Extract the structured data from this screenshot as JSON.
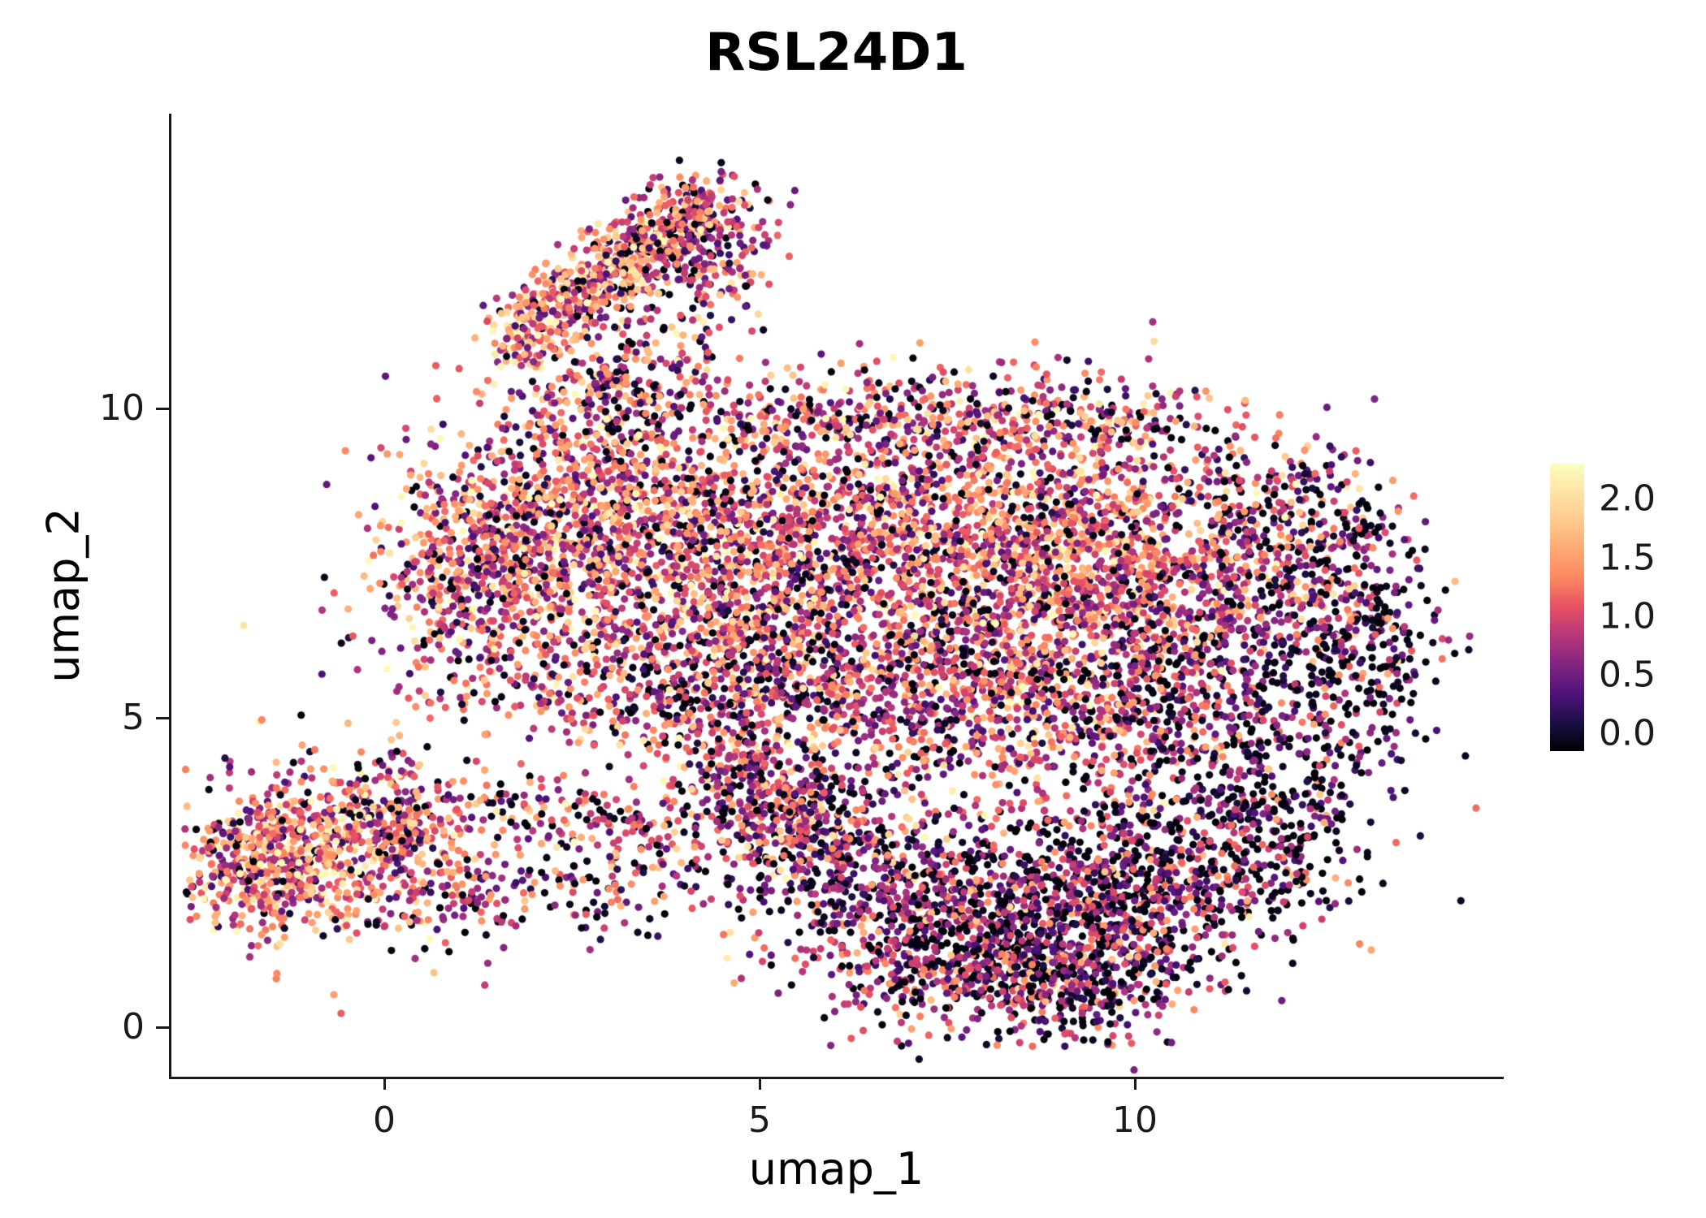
{
  "title": "RSL24D1",
  "axes": {
    "x": {
      "label": "umap_1",
      "ticks": [
        {
          "value": 0,
          "label": "0"
        },
        {
          "value": 5,
          "label": "5"
        },
        {
          "value": 10,
          "label": "10"
        }
      ]
    },
    "y": {
      "label": "umap_2",
      "ticks": [
        {
          "value": 0,
          "label": "0"
        },
        {
          "value": 5,
          "label": "5"
        },
        {
          "value": 10,
          "label": "10"
        }
      ]
    }
  },
  "legend": {
    "ticks": [
      {
        "value": 2.0,
        "label": "2.0"
      },
      {
        "value": 1.5,
        "label": "1.5"
      },
      {
        "value": 1.0,
        "label": "1.0"
      },
      {
        "value": 0.5,
        "label": "0.5"
      },
      {
        "value": 0.0,
        "label": "0.0"
      }
    ],
    "vmin": -0.15,
    "vmax": 2.3
  },
  "chart_data": {
    "type": "scatter",
    "title": "RSL24D1",
    "xlabel": "umap_1",
    "ylabel": "umap_2",
    "xlim": [
      -2.8,
      14.9
    ],
    "ylim": [
      -0.8,
      14.7
    ],
    "x_ticks": [
      0,
      5,
      10
    ],
    "y_ticks": [
      0,
      5,
      10
    ],
    "grid": false,
    "legend_position": "right",
    "color_range": [
      0,
      2.3
    ],
    "value_sd": 0.55,
    "point_radius_px": 4.6,
    "seed": 42,
    "colormap": {
      "name": "magma",
      "positions": [
        0,
        0.1,
        0.2,
        0.3,
        0.4,
        0.5,
        0.6,
        0.7,
        0.8,
        0.9,
        1.0
      ],
      "colors": [
        "#000004",
        "#1C1044",
        "#4F127B",
        "#812581",
        "#B5367A",
        "#E55064",
        "#FB8761",
        "#FEA873",
        "#FEC98D",
        "#FDE4A6",
        "#FCFDBF"
      ]
    },
    "representation": "gaussian_cluster_approximation_of_umap_embedding",
    "clusters": [
      {
        "type": "line",
        "x1": 1.7,
        "y1": 11.0,
        "x2": 3.3,
        "y2": 12.6,
        "spread": 0.28,
        "n": 420,
        "mean": 1.35,
        "zero": 0.06
      },
      {
        "type": "line",
        "x1": 3.3,
        "y1": 12.6,
        "x2": 4.4,
        "y2": 13.3,
        "spread": 0.3,
        "n": 260,
        "mean": 1.2,
        "zero": 0.08
      },
      {
        "type": "gauss",
        "cx": 4.3,
        "cy": 12.5,
        "sx": 0.5,
        "sy": 0.5,
        "n": 170,
        "mean": 0.95,
        "zero": 0.14
      },
      {
        "type": "gauss",
        "cx": 3.6,
        "cy": 11.2,
        "sx": 0.55,
        "sy": 0.6,
        "n": 120,
        "mean": 0.9,
        "zero": 0.15
      },
      {
        "type": "gauss",
        "cx": 2.9,
        "cy": 10.2,
        "sx": 0.5,
        "sy": 0.5,
        "n": 130,
        "mean": 1.0,
        "zero": 0.12
      },
      {
        "type": "gauss",
        "cx": 5.8,
        "cy": 9.9,
        "sx": 1.6,
        "sy": 0.38,
        "n": 300,
        "mean": 1.1,
        "zero": 0.12
      },
      {
        "type": "gauss",
        "cx": 9.0,
        "cy": 9.85,
        "sx": 1.2,
        "sy": 0.35,
        "n": 220,
        "mean": 1.0,
        "zero": 0.15
      },
      {
        "type": "gauss",
        "cx": 2.6,
        "cy": 8.3,
        "sx": 1.1,
        "sy": 0.95,
        "n": 950,
        "mean": 1.25,
        "zero": 0.08
      },
      {
        "type": "gauss",
        "cx": 1.3,
        "cy": 7.0,
        "sx": 0.75,
        "sy": 0.8,
        "n": 450,
        "mean": 1.15,
        "zero": 0.1
      },
      {
        "type": "gauss",
        "cx": 4.6,
        "cy": 7.6,
        "sx": 1.2,
        "sy": 1.1,
        "n": 900,
        "mean": 1.1,
        "zero": 0.12
      },
      {
        "type": "gauss",
        "cx": 7.0,
        "cy": 8.0,
        "sx": 1.3,
        "sy": 1.0,
        "n": 1000,
        "mean": 1.2,
        "zero": 0.1
      },
      {
        "type": "gauss",
        "cx": 9.3,
        "cy": 7.6,
        "sx": 1.2,
        "sy": 1.1,
        "n": 1000,
        "mean": 1.25,
        "zero": 0.08
      },
      {
        "type": "gauss",
        "cx": 11.2,
        "cy": 7.5,
        "sx": 0.9,
        "sy": 1.0,
        "n": 450,
        "mean": 0.95,
        "zero": 0.15
      },
      {
        "type": "gauss",
        "cx": 12.4,
        "cy": 7.6,
        "sx": 0.6,
        "sy": 0.9,
        "n": 250,
        "mean": 0.8,
        "zero": 0.2
      },
      {
        "type": "gauss",
        "cx": 4.0,
        "cy": 5.6,
        "sx": 1.3,
        "sy": 0.8,
        "n": 600,
        "mean": 1.05,
        "zero": 0.13
      },
      {
        "type": "gauss",
        "cx": 6.5,
        "cy": 5.6,
        "sx": 1.3,
        "sy": 0.9,
        "n": 650,
        "mean": 1.0,
        "zero": 0.15
      },
      {
        "type": "gauss",
        "cx": 8.8,
        "cy": 5.4,
        "sx": 1.2,
        "sy": 0.9,
        "n": 650,
        "mean": 1.05,
        "zero": 0.15
      },
      {
        "type": "gauss",
        "cx": 10.6,
        "cy": 5.2,
        "sx": 0.8,
        "sy": 1.0,
        "n": 350,
        "mean": 0.8,
        "zero": 0.2
      },
      {
        "type": "gauss",
        "cx": 12.3,
        "cy": 4.6,
        "sx": 0.7,
        "sy": 1.3,
        "n": 330,
        "mean": 0.55,
        "zero": 0.3
      },
      {
        "type": "gauss",
        "cx": 13.2,
        "cy": 6.3,
        "sx": 0.45,
        "sy": 0.9,
        "n": 180,
        "mean": 0.6,
        "zero": 0.3
      },
      {
        "type": "gauss",
        "cx": 11.5,
        "cy": 3.0,
        "sx": 0.6,
        "sy": 0.8,
        "n": 220,
        "mean": 0.6,
        "zero": 0.28
      },
      {
        "type": "gauss",
        "cx": 8.6,
        "cy": 1.6,
        "sx": 1.2,
        "sy": 0.75,
        "n": 800,
        "mean": 0.75,
        "zero": 0.22
      },
      {
        "type": "gauss",
        "cx": 10.1,
        "cy": 2.4,
        "sx": 0.9,
        "sy": 0.8,
        "n": 450,
        "mean": 0.7,
        "zero": 0.25
      },
      {
        "type": "gauss",
        "cx": 6.6,
        "cy": 2.4,
        "sx": 1.0,
        "sy": 0.7,
        "n": 450,
        "mean": 0.85,
        "zero": 0.18
      },
      {
        "type": "gauss",
        "cx": 5.3,
        "cy": 3.3,
        "sx": 0.8,
        "sy": 0.6,
        "n": 300,
        "mean": 0.9,
        "zero": 0.15
      },
      {
        "type": "line",
        "x1": 4.3,
        "y1": 4.3,
        "x2": 5.6,
        "y2": 3.4,
        "spread": 0.35,
        "n": 200,
        "mean": 0.95,
        "zero": 0.15
      },
      {
        "type": "gauss",
        "cx": 7.5,
        "cy": 0.9,
        "sx": 1.0,
        "sy": 0.45,
        "n": 250,
        "mean": 0.8,
        "zero": 0.2
      },
      {
        "type": "gauss",
        "cx": 9.3,
        "cy": 0.6,
        "sx": 0.7,
        "sy": 0.4,
        "n": 200,
        "mean": 0.75,
        "zero": 0.22
      },
      {
        "type": "gauss",
        "cx": -0.9,
        "cy": 2.9,
        "sx": 0.75,
        "sy": 0.7,
        "n": 600,
        "mean": 1.3,
        "zero": 0.07
      },
      {
        "type": "gauss",
        "cx": -1.8,
        "cy": 2.6,
        "sx": 0.4,
        "sy": 0.55,
        "n": 220,
        "mean": 1.35,
        "zero": 0.06
      },
      {
        "type": "gauss",
        "cx": 0.3,
        "cy": 3.4,
        "sx": 0.5,
        "sy": 0.5,
        "n": 200,
        "mean": 1.2,
        "zero": 0.1
      },
      {
        "type": "gauss",
        "cx": 1.0,
        "cy": 2.1,
        "sx": 0.6,
        "sy": 0.4,
        "n": 120,
        "mean": 1.0,
        "zero": 0.15
      },
      {
        "type": "line",
        "x1": 1.2,
        "y1": 3.6,
        "x2": 4.0,
        "y2": 3.1,
        "spread": 0.3,
        "n": 160,
        "mean": 1.0,
        "zero": 0.15
      },
      {
        "type": "gauss",
        "cx": 2.8,
        "cy": 2.3,
        "sx": 0.7,
        "sy": 0.4,
        "n": 90,
        "mean": 0.9,
        "zero": 0.2
      }
    ]
  }
}
